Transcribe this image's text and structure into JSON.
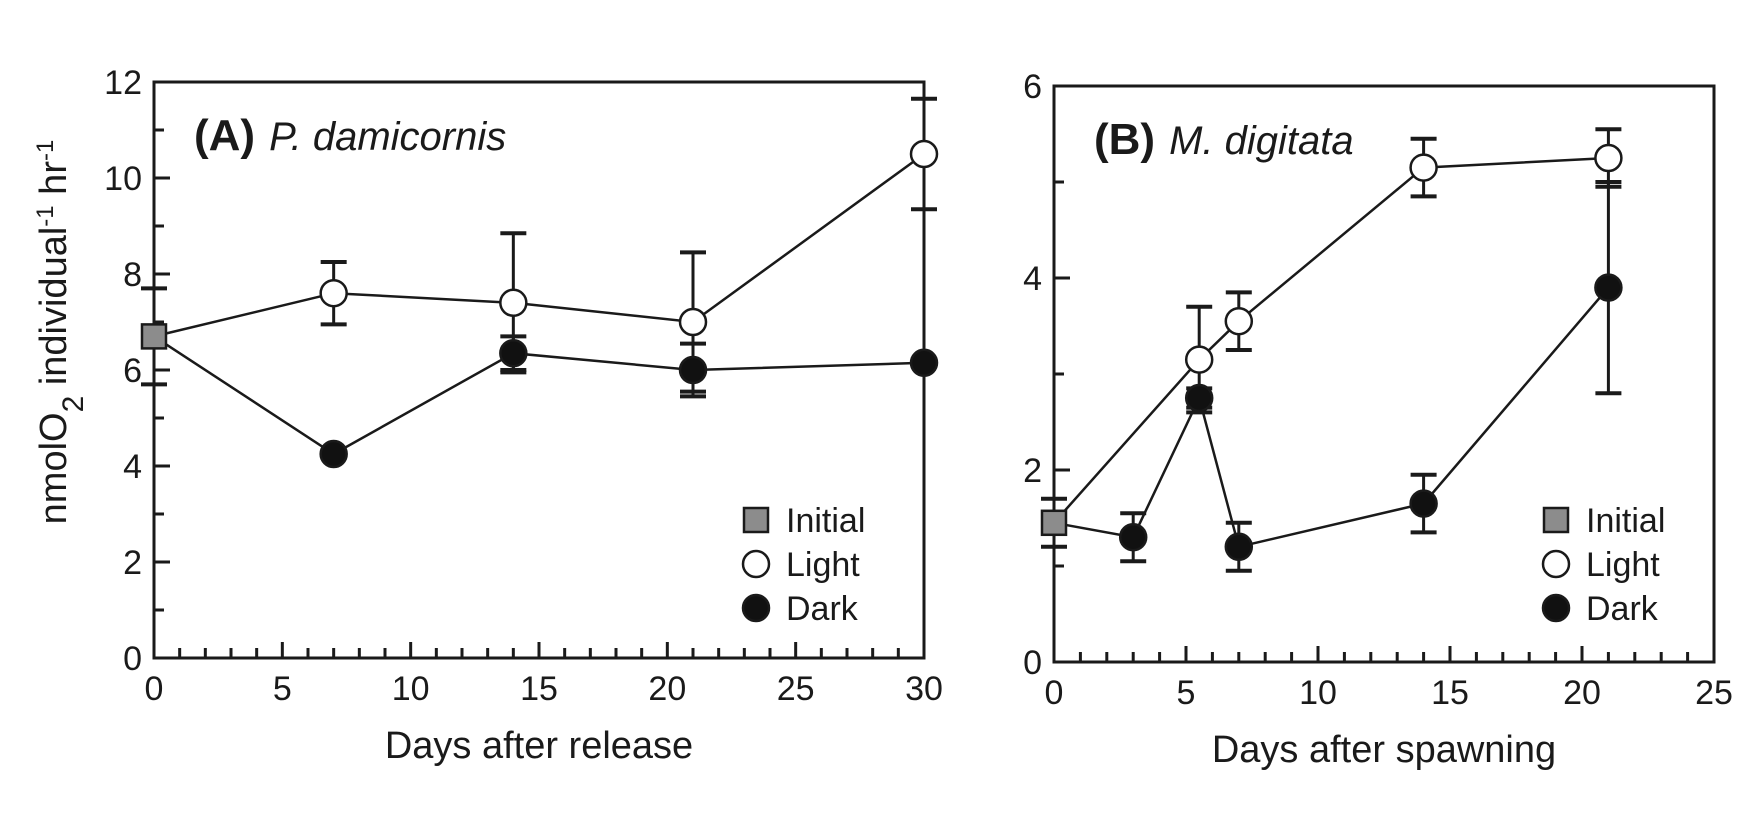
{
  "chart_data": [
    {
      "type": "line",
      "panel_label": "(A)",
      "species": "P. damicornis",
      "xlabel": "Days after release",
      "ylabel": "nmolO2 individual-1 hr-1",
      "xlim": [
        0,
        30
      ],
      "ylim": [
        0,
        12
      ],
      "x_ticks": [
        0,
        5,
        10,
        15,
        20,
        25,
        30
      ],
      "y_ticks": [
        0,
        2,
        4,
        6,
        8,
        10,
        12
      ],
      "grid": false,
      "legend_position": "bottom-right",
      "series": [
        {
          "name": "Initial",
          "marker": "square",
          "color": "#8c8c8c",
          "points": [
            {
              "x": 0,
              "y": 6.7,
              "err": 1.0
            }
          ]
        },
        {
          "name": "Light",
          "marker": "open-circle",
          "color": "#ffffff",
          "points": [
            {
              "x": 0,
              "y": 6.7
            },
            {
              "x": 7,
              "y": 7.6,
              "err": 0.65
            },
            {
              "x": 14,
              "y": 7.4,
              "err": 1.45
            },
            {
              "x": 21,
              "y": 7.0,
              "err": 1.45
            },
            {
              "x": 30,
              "y": 10.5,
              "err": 1.15
            }
          ]
        },
        {
          "name": "Dark",
          "marker": "filled-circle",
          "color": "#111111",
          "points": [
            {
              "x": 0,
              "y": 6.7
            },
            {
              "x": 7,
              "y": 4.25
            },
            {
              "x": 14,
              "y": 6.35,
              "err": 0.35
            },
            {
              "x": 21,
              "y": 6.0,
              "err": 0.55
            },
            {
              "x": 30,
              "y": 6.15
            }
          ]
        }
      ]
    },
    {
      "type": "line",
      "panel_label": "(B)",
      "species": "M. digitata",
      "xlabel": "Days after spawning",
      "ylabel": "",
      "xlim": [
        0,
        25
      ],
      "ylim": [
        0,
        6
      ],
      "x_ticks": [
        0,
        5,
        10,
        15,
        20,
        25
      ],
      "y_ticks": [
        0,
        2,
        4,
        6
      ],
      "grid": false,
      "legend_position": "bottom-right",
      "series": [
        {
          "name": "Initial",
          "marker": "square",
          "color": "#8c8c8c",
          "points": [
            {
              "x": 0,
              "y": 1.45,
              "err": 0.25
            }
          ]
        },
        {
          "name": "Light",
          "marker": "open-circle",
          "color": "#ffffff",
          "points": [
            {
              "x": 0,
              "y": 1.45
            },
            {
              "x": 5.5,
              "y": 3.15,
              "err": 0.55
            },
            {
              "x": 7,
              "y": 3.55,
              "err": 0.3
            },
            {
              "x": 14,
              "y": 5.15,
              "err": 0.3
            },
            {
              "x": 21,
              "y": 5.25,
              "err": 0.3
            }
          ]
        },
        {
          "name": "Dark",
          "marker": "filled-circle",
          "color": "#111111",
          "points": [
            {
              "x": 0,
              "y": 1.45
            },
            {
              "x": 3,
              "y": 1.3,
              "err": 0.25
            },
            {
              "x": 5.5,
              "y": 2.75,
              "err": 0.1
            },
            {
              "x": 7,
              "y": 1.2,
              "err": 0.25
            },
            {
              "x": 14,
              "y": 1.65,
              "err": 0.3
            },
            {
              "x": 21,
              "y": 3.9,
              "err": 1.1
            }
          ]
        }
      ]
    }
  ]
}
